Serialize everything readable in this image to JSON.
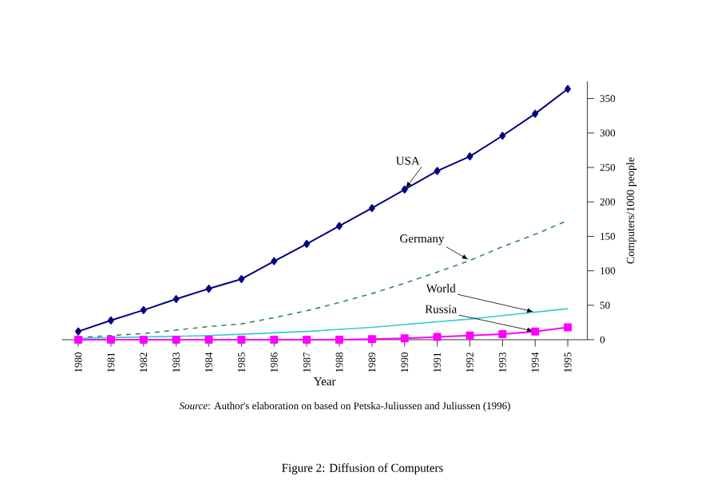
{
  "chart_data": {
    "type": "line",
    "xlabel": "Year",
    "ylabel": "Computers/1000 people",
    "categories": [
      "1980",
      "1981",
      "1982",
      "1983",
      "1984",
      "1985",
      "1986",
      "1987",
      "1988",
      "1989",
      "1990",
      "1991",
      "1992",
      "1993",
      "1994",
      "1995"
    ],
    "ylim": [
      0,
      375
    ],
    "yticks": [
      0,
      50,
      100,
      150,
      200,
      250,
      300,
      350
    ],
    "grid": false,
    "series": [
      {
        "color": "#000080",
        "marker": "diamond",
        "line_style": "solid",
        "values": [
          12,
          28,
          43,
          59,
          74,
          88,
          114,
          139,
          165,
          191,
          218,
          245,
          266,
          296,
          328,
          364
        ]
      },
      {
        "color": "#2e8b57",
        "marker": "none",
        "line_style": "dashed",
        "values": [
          3,
          6,
          9,
          14,
          19,
          23,
          32,
          42,
          54,
          67,
          82,
          98,
          115,
          135,
          153,
          173
        ]
      },
      {
        "color": "#33cccc",
        "marker": "none",
        "line_style": "solid",
        "values": [
          2,
          3,
          4,
          5,
          6,
          8,
          10,
          12,
          15,
          18,
          22,
          26,
          30,
          35,
          40,
          45
        ]
      },
      {
        "color": "#ff00ff",
        "marker": "square",
        "line_style": "solid",
        "values": [
          0,
          0,
          0,
          0,
          0,
          0,
          0,
          0,
          0,
          1,
          2,
          4,
          6,
          8,
          12,
          18
        ]
      }
    ],
    "annotations": [
      {
        "text": "USA",
        "x": "1990",
        "y": 218
      },
      {
        "text": "Germany",
        "x": "1992",
        "y": 115
      },
      {
        "text": "World",
        "x": "1994",
        "y": 40
      },
      {
        "text": "Russia",
        "x": "1994",
        "y": 12
      },
      "*Source*:  Author's elaboration on based on Petska-Juliussen and Juliussen (1996)",
      "Figure 2: Diffusion of Computers"
    ]
  }
}
